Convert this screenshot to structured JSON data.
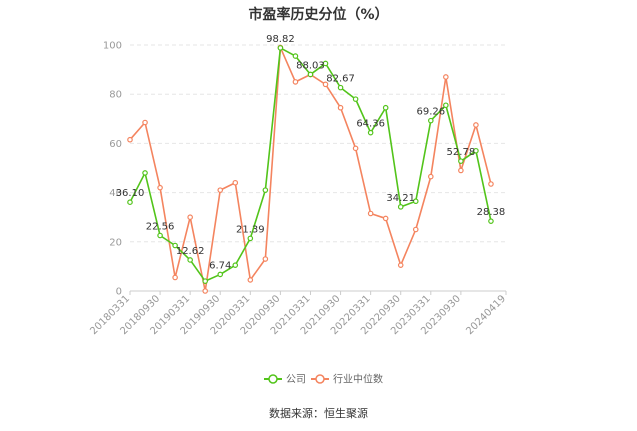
{
  "chart_data": {
    "type": "line",
    "title": "市盈率历史分位（%）",
    "x": [
      "20180331",
      "20180630",
      "20180930",
      "20181231",
      "20190331",
      "20190630",
      "20190930",
      "20191231",
      "20200331",
      "20200630",
      "20200930",
      "20201231",
      "20210331",
      "20210630",
      "20210930",
      "20211231",
      "20220331",
      "20220630",
      "20220930",
      "20221231",
      "20230331",
      "20230630",
      "20230930",
      "20231231",
      "20240331",
      "20240419"
    ],
    "x_tick_labels": [
      "20180331",
      "20180930",
      "20190331",
      "20190930",
      "20200331",
      "20200930",
      "20210331",
      "20210930",
      "20220331",
      "20220930",
      "20230331",
      "20230930",
      "20240419"
    ],
    "ylim": [
      0,
      100
    ],
    "y_ticks": [
      0,
      20,
      40,
      60,
      80,
      100
    ],
    "grid": "horizontal dashed",
    "legend_position": "bottom-center",
    "series": [
      {
        "name": "公司",
        "color": "#52c41a",
        "values": [
          36.1,
          48.0,
          22.56,
          18.5,
          12.62,
          4.0,
          6.74,
          10.5,
          21.39,
          41.0,
          98.82,
          95.5,
          88.03,
          92.5,
          82.67,
          78.0,
          64.36,
          74.5,
          34.21,
          36.5,
          69.26,
          75.5,
          52.78,
          57.0,
          28.38,
          null
        ],
        "labels": {
          "0": "36.10",
          "2": "22.56",
          "4": "12.62",
          "6": "6.74",
          "8": "21.39",
          "10": "98.82",
          "12": "88.03",
          "14": "82.67",
          "16": "64.36",
          "18": "34.21",
          "20": "69.26",
          "22": "52.78",
          "24": "28.38"
        }
      },
      {
        "name": "行业中位数",
        "color": "#f4845f",
        "values": [
          61.5,
          68.5,
          42.0,
          5.5,
          30.0,
          0.0,
          41.0,
          44.0,
          4.5,
          13.0,
          99.0,
          85.0,
          88.0,
          84.0,
          74.5,
          58.0,
          31.5,
          29.5,
          10.5,
          25.0,
          46.5,
          87.0,
          49.0,
          67.5,
          43.5,
          null
        ]
      }
    ]
  },
  "source_text": "数据来源：恒生聚源"
}
